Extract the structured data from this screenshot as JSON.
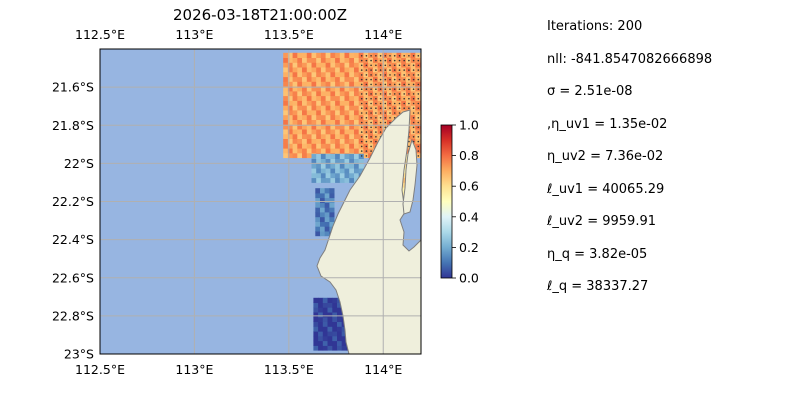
{
  "chart_data": {
    "type": "heatmap",
    "title": "2026-03-18T21:00:00Z",
    "x_ticks": [
      "112.5°E",
      "113°E",
      "113.5°E",
      "114°E"
    ],
    "y_ticks": [
      "21.6°S",
      "21.8°S",
      "22°S",
      "22.2°S",
      "22.4°S",
      "22.6°S",
      "22.8°S",
      "23°S"
    ],
    "xlim": [
      112.5,
      114.2
    ],
    "ylim": [
      -23.0,
      -21.4
    ],
    "grid": true,
    "colorbar": {
      "ticks": [
        "0.0",
        "0.2",
        "0.4",
        "0.6",
        "0.8",
        "1.0"
      ],
      "range": [
        0,
        1
      ],
      "colormap": "RdYlBu_r"
    },
    "colors": {
      "ocean": "#97b5e1",
      "land": "#efefdc",
      "coast": "#7f7f7f",
      "grid": "#b0b0b0"
    },
    "regions": [
      {
        "lon": [
          113.47,
          114.18
        ],
        "lat": [
          -21.97,
          -21.42
        ],
        "value": 0.72,
        "stipple_lon_min": 113.85
      },
      {
        "lon": [
          113.62,
          113.88
        ],
        "lat": [
          -22.1,
          -21.97
        ],
        "value": 0.2
      },
      {
        "lon": [
          113.64,
          113.72
        ],
        "lat": [
          -22.38,
          -22.15
        ],
        "value": 0.12
      },
      {
        "lon": [
          113.63,
          113.85
        ],
        "lat": [
          -22.98,
          -22.72
        ],
        "value": 0.0
      },
      {
        "lon": [
          114.07,
          114.14
        ],
        "lat": [
          -22.2,
          -21.95
        ],
        "value": 0.6
      }
    ]
  },
  "params": [
    "Iterations: 200",
    "nll: -841.8547082666898",
    "σ = 2.51e-08",
    ",η_uv1 = 1.35e-02",
    "η_uv2 = 7.36e-02",
    "ℓ_uv1 = 40065.29",
    "ℓ_uv2 = 9959.91",
    "η_q = 3.82e-05",
    "ℓ_q = 38337.27"
  ]
}
